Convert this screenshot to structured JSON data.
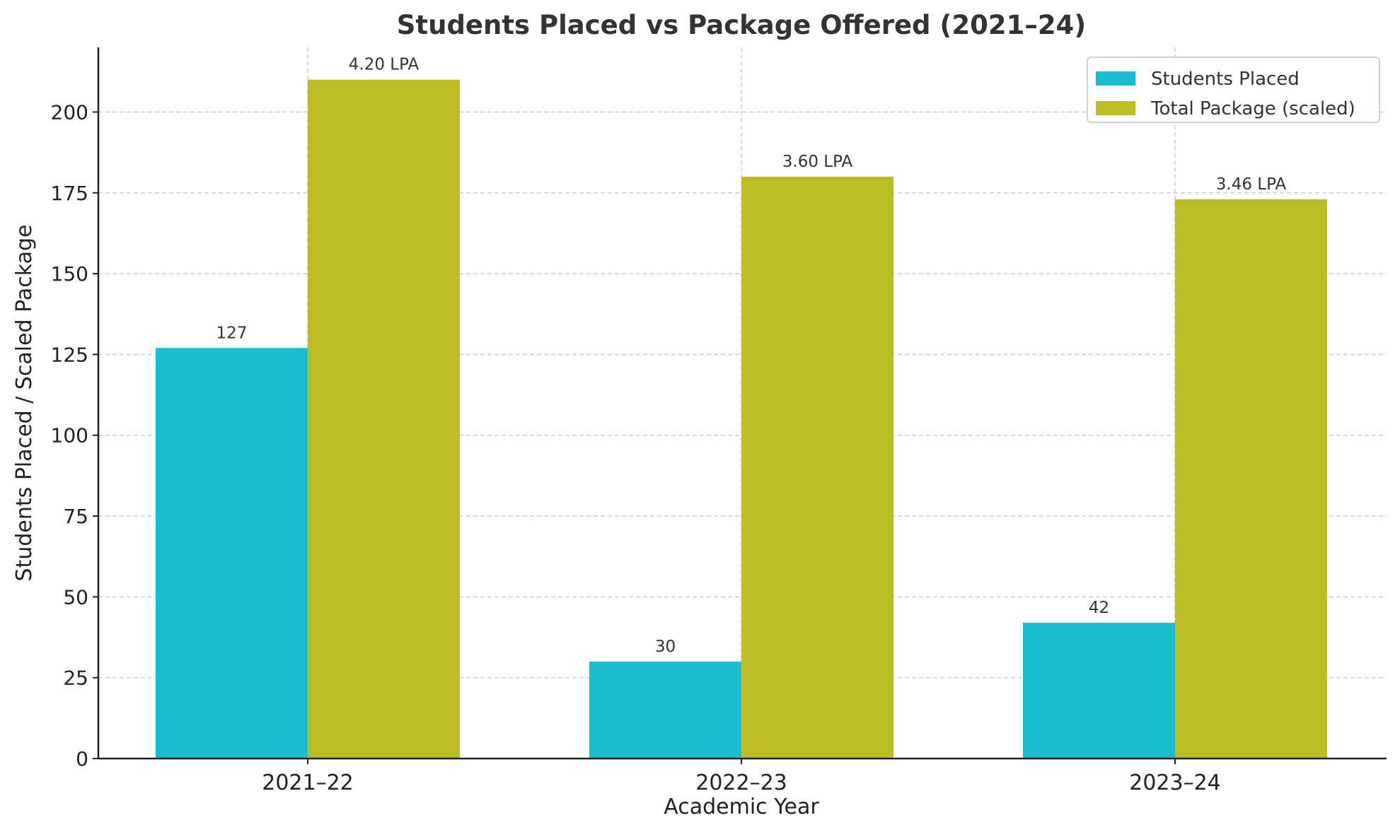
{
  "chart_data": {
    "type": "bar",
    "title": "Students Placed vs Package Offered (2021–24)",
    "xlabel": "Academic Year",
    "ylabel": "Students Placed / Scaled Package",
    "categories": [
      "2021–22",
      "2022–23",
      "2023–24"
    ],
    "series": [
      {
        "name": "Students Placed",
        "color": "#17becf",
        "values": [
          127,
          30,
          42
        ],
        "labels": [
          "127",
          "30",
          "42"
        ]
      },
      {
        "name": "Total Package (scaled)",
        "color": "#bcbd22",
        "values": [
          210,
          180,
          173
        ],
        "labels": [
          "4.20 LPA",
          "3.60 LPA",
          "3.46 LPA"
        ]
      }
    ],
    "yticks": [
      0,
      25,
      50,
      75,
      100,
      125,
      150,
      175,
      200
    ],
    "ylim": [
      0,
      220
    ],
    "grid": true,
    "legend_position": "upper right"
  }
}
